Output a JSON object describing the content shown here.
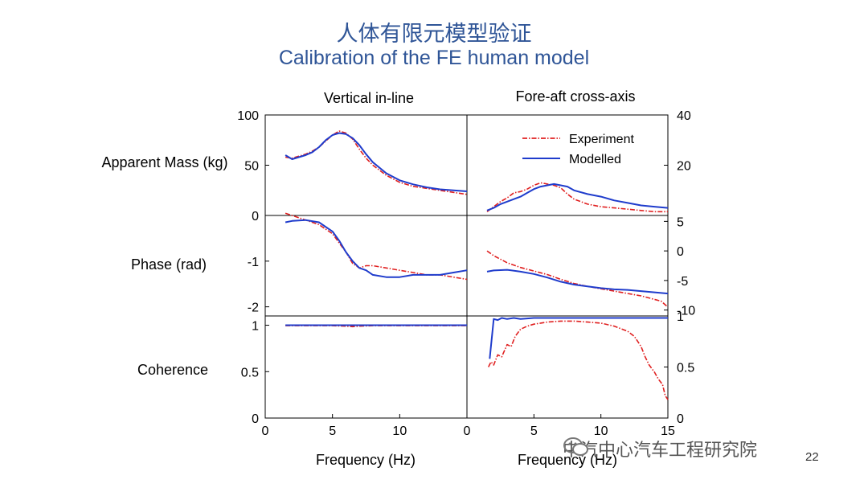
{
  "slide": {
    "title_cn": "人体有限元模型验证",
    "title_en": "Calibration of the FE human model",
    "watermark": "中汽中心汽车工程研究院",
    "page_number": "22"
  },
  "colors": {
    "experiment": "#e02020",
    "modelled": "#1f3ccc",
    "axis": "#000000"
  },
  "chart_data": {
    "type": "line",
    "columns": [
      "Vertical in-line",
      "Fore-aft cross-axis"
    ],
    "rows": [
      "Apparent Mass (kg)",
      "Phase (rad)",
      "Coherence"
    ],
    "xlabel": "Frequency (Hz)",
    "xlim": [
      0,
      15
    ],
    "xticks": [
      0,
      5,
      10
    ],
    "xticks_right": [
      0,
      5,
      10,
      15
    ],
    "legend": {
      "placement": "top-right of fore-aft apparent mass panel",
      "entries": [
        "Experiment",
        "Modelled"
      ]
    },
    "axes": {
      "mass_left": {
        "ylim": [
          0,
          100
        ],
        "ticks": [
          0,
          50,
          100
        ]
      },
      "mass_right": {
        "ylim": [
          0,
          40
        ],
        "ticks": [
          20,
          40
        ]
      },
      "phase_left": {
        "ylim": [
          -2.2,
          0
        ],
        "ticks": [
          -2,
          -1
        ]
      },
      "phase_right": {
        "ylim": [
          -11,
          6
        ],
        "ticks": [
          -10,
          -5,
          0,
          5
        ]
      },
      "coh_left": {
        "ylim": [
          0,
          1.1
        ],
        "ticks": [
          0,
          0.5,
          1
        ]
      },
      "coh_right": {
        "ylim": [
          0,
          1.0
        ],
        "ticks": [
          0,
          0.5,
          1
        ]
      }
    },
    "panels": [
      {
        "id": "va",
        "col": 0,
        "row": 0,
        "axis": "mass_left",
        "series": [
          {
            "name": "Experiment",
            "x": [
              1.5,
              2,
              2.5,
              3,
              3.5,
              4,
              4.5,
              5,
              5.5,
              6,
              6.5,
              7,
              7.5,
              8,
              9,
              10,
              11,
              12,
              13,
              14,
              15
            ],
            "y": [
              58,
              57,
              59,
              61,
              64,
              68,
              74,
              80,
              84,
              82,
              76,
              66,
              57,
              50,
              40,
              33,
              29,
              27,
              25,
              23,
              21
            ]
          },
          {
            "name": "Modelled",
            "x": [
              1.5,
              2,
              2.5,
              3,
              3.5,
              4,
              4.5,
              5,
              5.5,
              6,
              6.5,
              7,
              7.5,
              8,
              9,
              10,
              11,
              12,
              13,
              14,
              15
            ],
            "y": [
              60,
              56,
              58,
              60,
              63,
              68,
              75,
              80,
              82,
              81,
              77,
              70,
              61,
              53,
              42,
              35,
              31,
              28,
              26,
              25,
              24
            ]
          }
        ]
      },
      {
        "id": "fa",
        "col": 1,
        "row": 0,
        "axis": "mass_right",
        "series": [
          {
            "name": "Experiment",
            "x": [
              1.5,
              2,
              2.5,
              3,
              3.5,
              4,
              4.5,
              5,
              5.5,
              6,
              6.5,
              7,
              7.5,
              8,
              9,
              10,
              11,
              12,
              13,
              14,
              15
            ],
            "y": [
              1.5,
              3.5,
              5.5,
              7,
              9,
              9.5,
              10.5,
              12,
              13,
              12.5,
              12,
              11,
              8.5,
              6.5,
              4.5,
              3.5,
              3,
              2.5,
              2,
              1.5,
              1.5
            ]
          },
          {
            "name": "Modelled",
            "x": [
              1.5,
              2,
              2.5,
              3,
              3.5,
              4,
              4.5,
              5,
              5.5,
              6,
              6.5,
              7,
              7.5,
              8,
              9,
              10,
              11,
              12,
              13,
              14,
              15
            ],
            "y": [
              2,
              3,
              4.5,
              5.5,
              6.5,
              7.5,
              9,
              10.5,
              11.5,
              12,
              12.5,
              12,
              11.5,
              10,
              8.5,
              7.5,
              6,
              5,
              4,
              3.5,
              3
            ]
          }
        ]
      },
      {
        "id": "vp",
        "col": 0,
        "row": 1,
        "axis": "phase_left",
        "series": [
          {
            "name": "Experiment",
            "x": [
              1.5,
              2,
              3,
              4,
              5,
              5.5,
              6,
              6.5,
              7,
              7.5,
              8,
              9,
              10,
              11,
              12,
              13,
              14,
              15
            ],
            "y": [
              0.05,
              0,
              -0.1,
              -0.2,
              -0.4,
              -0.6,
              -0.8,
              -1.05,
              -1.15,
              -1.1,
              -1.1,
              -1.15,
              -1.2,
              -1.25,
              -1.3,
              -1.3,
              -1.35,
              -1.4
            ]
          },
          {
            "name": "Modelled",
            "x": [
              1.5,
              2,
              3,
              4,
              5,
              5.5,
              6,
              6.5,
              7,
              7.5,
              8,
              9,
              10,
              11,
              12,
              13,
              14,
              15
            ],
            "y": [
              -0.15,
              -0.12,
              -0.1,
              -0.15,
              -0.35,
              -0.55,
              -0.8,
              -1.0,
              -1.15,
              -1.2,
              -1.3,
              -1.35,
              -1.35,
              -1.3,
              -1.3,
              -1.3,
              -1.25,
              -1.2
            ]
          }
        ]
      },
      {
        "id": "fp",
        "col": 1,
        "row": 1,
        "axis": "phase_right",
        "series": [
          {
            "name": "Experiment",
            "x": [
              1.5,
              2,
              3,
              4,
              5,
              6,
              7,
              8,
              9,
              10,
              11,
              12,
              13,
              14,
              14.5,
              15
            ],
            "y": [
              0,
              -0.8,
              -2,
              -2.8,
              -3.4,
              -4,
              -4.8,
              -5.5,
              -6,
              -6.4,
              -6.8,
              -7.2,
              -7.6,
              -8.2,
              -8.5,
              -9.5
            ]
          },
          {
            "name": "Modelled",
            "x": [
              1.5,
              2,
              3,
              4,
              5,
              6,
              7,
              8,
              9,
              10,
              11,
              12,
              13,
              14,
              15
            ],
            "y": [
              -3.5,
              -3.3,
              -3.2,
              -3.5,
              -3.9,
              -4.5,
              -5.2,
              -5.7,
              -6,
              -6.3,
              -6.5,
              -6.6,
              -6.8,
              -7,
              -7.2
            ]
          }
        ]
      },
      {
        "id": "vc",
        "col": 0,
        "row": 2,
        "axis": "coh_left",
        "series": [
          {
            "name": "Experiment",
            "x": [
              1.5,
              3,
              5,
              6,
              6.5,
              7,
              8,
              10,
              12,
              15
            ],
            "y": [
              0.995,
              0.995,
              0.995,
              0.99,
              0.985,
              0.99,
              0.995,
              0.995,
              0.995,
              0.995
            ]
          },
          {
            "name": "Modelled",
            "x": [
              1.5,
              15
            ],
            "y": [
              1.0,
              1.0
            ]
          }
        ]
      },
      {
        "id": "fc",
        "col": 1,
        "row": 2,
        "axis": "coh_right",
        "series": [
          {
            "name": "Experiment",
            "x": [
              1.6,
              1.8,
              2,
              2.3,
              2.6,
              3,
              3.3,
              3.6,
              4,
              4.5,
              5,
              5.5,
              6,
              7,
              8,
              9,
              10,
              11,
              12,
              12.5,
              13,
              13.3,
              13.6,
              14,
              14.3,
              14.6,
              14.8,
              15
            ],
            "y": [
              0.5,
              0.55,
              0.52,
              0.62,
              0.6,
              0.72,
              0.7,
              0.8,
              0.87,
              0.9,
              0.92,
              0.93,
              0.94,
              0.95,
              0.95,
              0.94,
              0.93,
              0.9,
              0.85,
              0.8,
              0.7,
              0.6,
              0.52,
              0.45,
              0.38,
              0.33,
              0.22,
              0.18
            ]
          },
          {
            "name": "Modelled",
            "x": [
              1.7,
              2,
              2.3,
              2.6,
              3,
              3.5,
              4,
              5,
              6,
              8,
              10,
              12,
              14,
              15
            ],
            "y": [
              0.58,
              0.97,
              0.96,
              0.98,
              0.97,
              0.98,
              0.97,
              0.98,
              0.98,
              0.98,
              0.98,
              0.98,
              0.98,
              0.98
            ]
          }
        ]
      }
    ]
  }
}
